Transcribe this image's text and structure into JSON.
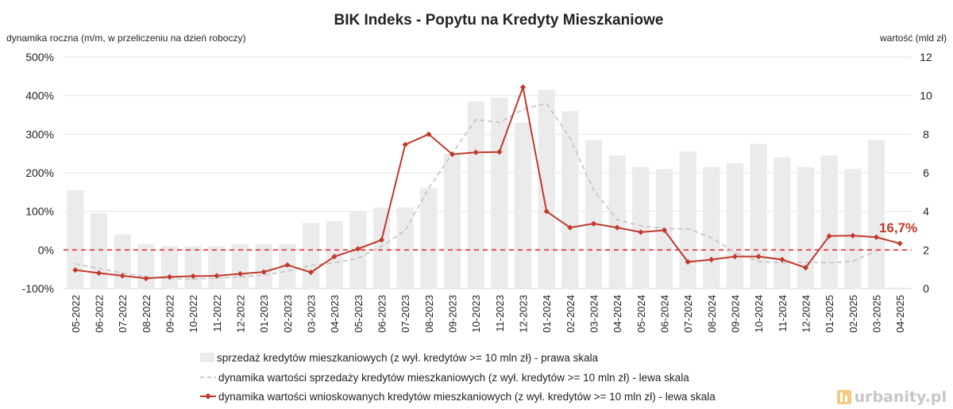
{
  "chart_data": {
    "type": "bar+line",
    "title": "BIK Indeks - Popytu na Kredyty Mieszkaniowe",
    "ylabel_left": "dynamika roczna (m/m, w przeliczeniu na dzień roboczy)",
    "ylabel_right": "wartość (mld zł)",
    "ylim_left": [
      -100,
      500
    ],
    "yticks_left": [
      "-100%",
      "0%",
      "100%",
      "200%",
      "300%",
      "400%",
      "500%"
    ],
    "ylim_right": [
      0,
      12
    ],
    "yticks_right": [
      "0",
      "2",
      "4",
      "6",
      "8",
      "10",
      "12"
    ],
    "categories": [
      "05-2022",
      "06-2022",
      "07-2022",
      "08-2022",
      "09-2022",
      "10-2022",
      "11-2022",
      "12-2022",
      "01-2023",
      "02-2023",
      "03-2023",
      "04-2023",
      "05-2023",
      "06-2023",
      "07-2023",
      "08-2023",
      "09-2023",
      "10-2023",
      "11-2023",
      "12-2023",
      "01-2024",
      "02-2024",
      "03-2024",
      "04-2024",
      "05-2024",
      "06-2024",
      "07-2024",
      "08-2024",
      "09-2024",
      "10-2024",
      "11-2024",
      "12-2024",
      "01-2025",
      "02-2025",
      "03-2025",
      "04-2025"
    ],
    "series": [
      {
        "name": "sprzedaż kredytów mieszkaniowych (z wył. kredytów >= 10 mln zł) - prawa skala",
        "type": "bar",
        "axis": "right",
        "color": "#ebebeb",
        "values": [
          5.1,
          3.9,
          2.8,
          2.3,
          2.2,
          2.2,
          2.2,
          2.3,
          2.3,
          2.3,
          3.4,
          3.5,
          4.0,
          4.2,
          4.2,
          5.2,
          7.0,
          9.7,
          9.9,
          8.6,
          10.3,
          9.2,
          7.7,
          6.9,
          6.3,
          6.2,
          7.1,
          6.3,
          6.5,
          7.5,
          6.8,
          6.3,
          6.9,
          6.2,
          7.7,
          0
        ]
      },
      {
        "name": "dynamika wartości sprzedaży kredytów mieszkaniowych (z wył. kredytów >= 10 mln zł) - lewa skala",
        "type": "line",
        "style": "dashed",
        "axis": "left",
        "color": "#c8c8c8",
        "values": [
          -36,
          -48,
          -60,
          -70,
          -74,
          -76,
          -72,
          -70,
          -65,
          -55,
          -40,
          -33,
          -22,
          10,
          50,
          160,
          250,
          338,
          330,
          365,
          380,
          290,
          155,
          78,
          63,
          55,
          55,
          32,
          -7,
          -30,
          -33,
          -32,
          -33,
          -30,
          -2,
          null
        ]
      },
      {
        "name": "dynamika wartości wnioskowanych kredytów mieszkaniowych (z wył. kredytów >= 10 mln zł) - lewa skala",
        "type": "line",
        "style": "solid-markers",
        "axis": "left",
        "color": "#c0392b",
        "values": [
          -52,
          -60,
          -67,
          -74,
          -70,
          -68,
          -67,
          -62,
          -57,
          -39,
          -58,
          -17,
          3,
          26,
          273,
          300,
          248,
          253,
          254,
          422,
          100,
          58,
          68,
          58,
          46,
          51,
          -31,
          -25,
          -17,
          -17,
          -25,
          -46,
          36,
          37,
          33,
          16.7
        ]
      }
    ],
    "reference_line": {
      "value": 0,
      "axis": "left",
      "style": "dashed",
      "color": "#e03030"
    },
    "annotation": {
      "text": "16,7%",
      "color": "#c0392b"
    },
    "grid": "horizontal",
    "legend_position": "bottom"
  },
  "watermark": {
    "text": "urbanity.pl"
  }
}
